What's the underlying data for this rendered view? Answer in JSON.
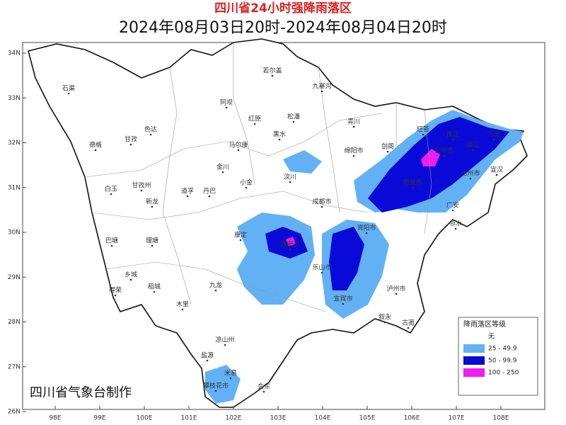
{
  "title": "四川省24小时强降雨落区",
  "subtitle": "2024年08月03日20时-2024年08月04日20时",
  "lat_ticks": [
    "34N",
    "33N",
    "32N",
    "31N",
    "30N",
    "29N",
    "28N",
    "27N",
    "26N"
  ],
  "lon_ticks": [
    "98E",
    "99E",
    "100E",
    "101E",
    "102E",
    "103E",
    "104E",
    "105E",
    "106E",
    "107E",
    "108E"
  ],
  "places": [
    "若尔盖",
    "九寨沟",
    "石渠",
    "阿坝",
    "红原",
    "松潘",
    "德格",
    "色达",
    "甘孜",
    "马尔康",
    "黑水",
    "青川",
    "剑阁",
    "旺苍",
    "南江",
    "通江",
    "万源",
    "绵阳市",
    "巴中市",
    "达州市",
    "宣汉",
    "南充市",
    "广安",
    "邻水",
    "甘孜州",
    "白玉",
    "新龙",
    "道孚",
    "丹巴",
    "金川",
    "小金",
    "汶川",
    "成都市",
    "巴塘",
    "理塘",
    "康定",
    "雅安市",
    "资阳市",
    "乐山市",
    "稻城",
    "乡城",
    "得荣",
    "九龙",
    "木里",
    "宜宾市",
    "泸州市",
    "叙永",
    "古蔺",
    "凉山州",
    "盐源",
    "米易",
    "攀枝花市",
    "会东"
  ],
  "legend": {
    "title": "降雨落区等级",
    "items": [
      {
        "label": "无",
        "color": "#ffffff"
      },
      {
        "label": "25 - 49.9",
        "color": "#63b1f5"
      },
      {
        "label": "50 - 99.9",
        "color": "#0a0ad8"
      },
      {
        "label": "100 - 250",
        "color": "#f01cf0"
      }
    ]
  },
  "credit": "四川省气象台制作"
}
